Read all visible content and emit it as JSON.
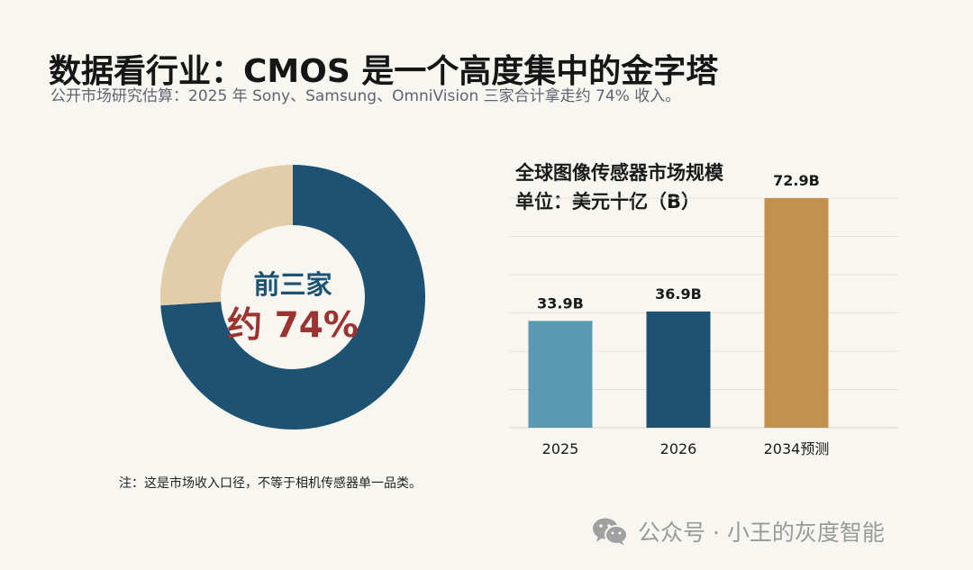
{
  "header": {
    "title": "数据看行业：CMOS 是一个高度集中的金字塔",
    "subtitle": "公开市场研究估算：2025 年 Sony、Samsung、OmniVision 三家合计拿走约 74% 收入。"
  },
  "donut": {
    "label_top": "前三家",
    "label_main": "约 74%"
  },
  "bar_chart": {
    "title_line1": "全球图像传感器市场规模",
    "title_line2": "单位：美元十亿（B）"
  },
  "note": "注：这是市场收入口径，不等于相机传感器单一品类。",
  "watermark": {
    "icon": "wechat-icon",
    "text": "公众号 · 小王的灰度智能"
  },
  "chart_data": [
    {
      "type": "pie",
      "categories": [
        "前三家",
        ""
      ],
      "values": [
        74,
        26
      ],
      "colors": [
        "#1e5272",
        "#e1cdaa"
      ],
      "donut": true
    },
    {
      "type": "bar",
      "title": "全球图像传感器市场规模",
      "subtitle": "单位：美元十亿（B）",
      "categories": [
        "2025",
        "2026",
        "2034预测"
      ],
      "values": [
        33.9,
        36.9,
        72.9
      ],
      "data_labels": [
        "33.9B",
        "36.9B",
        "72.9B"
      ],
      "colors": [
        "#5a9ab0",
        "#1e5272",
        "#c3914e"
      ],
      "ylim": [
        0,
        72.9
      ],
      "grid": true
    }
  ]
}
